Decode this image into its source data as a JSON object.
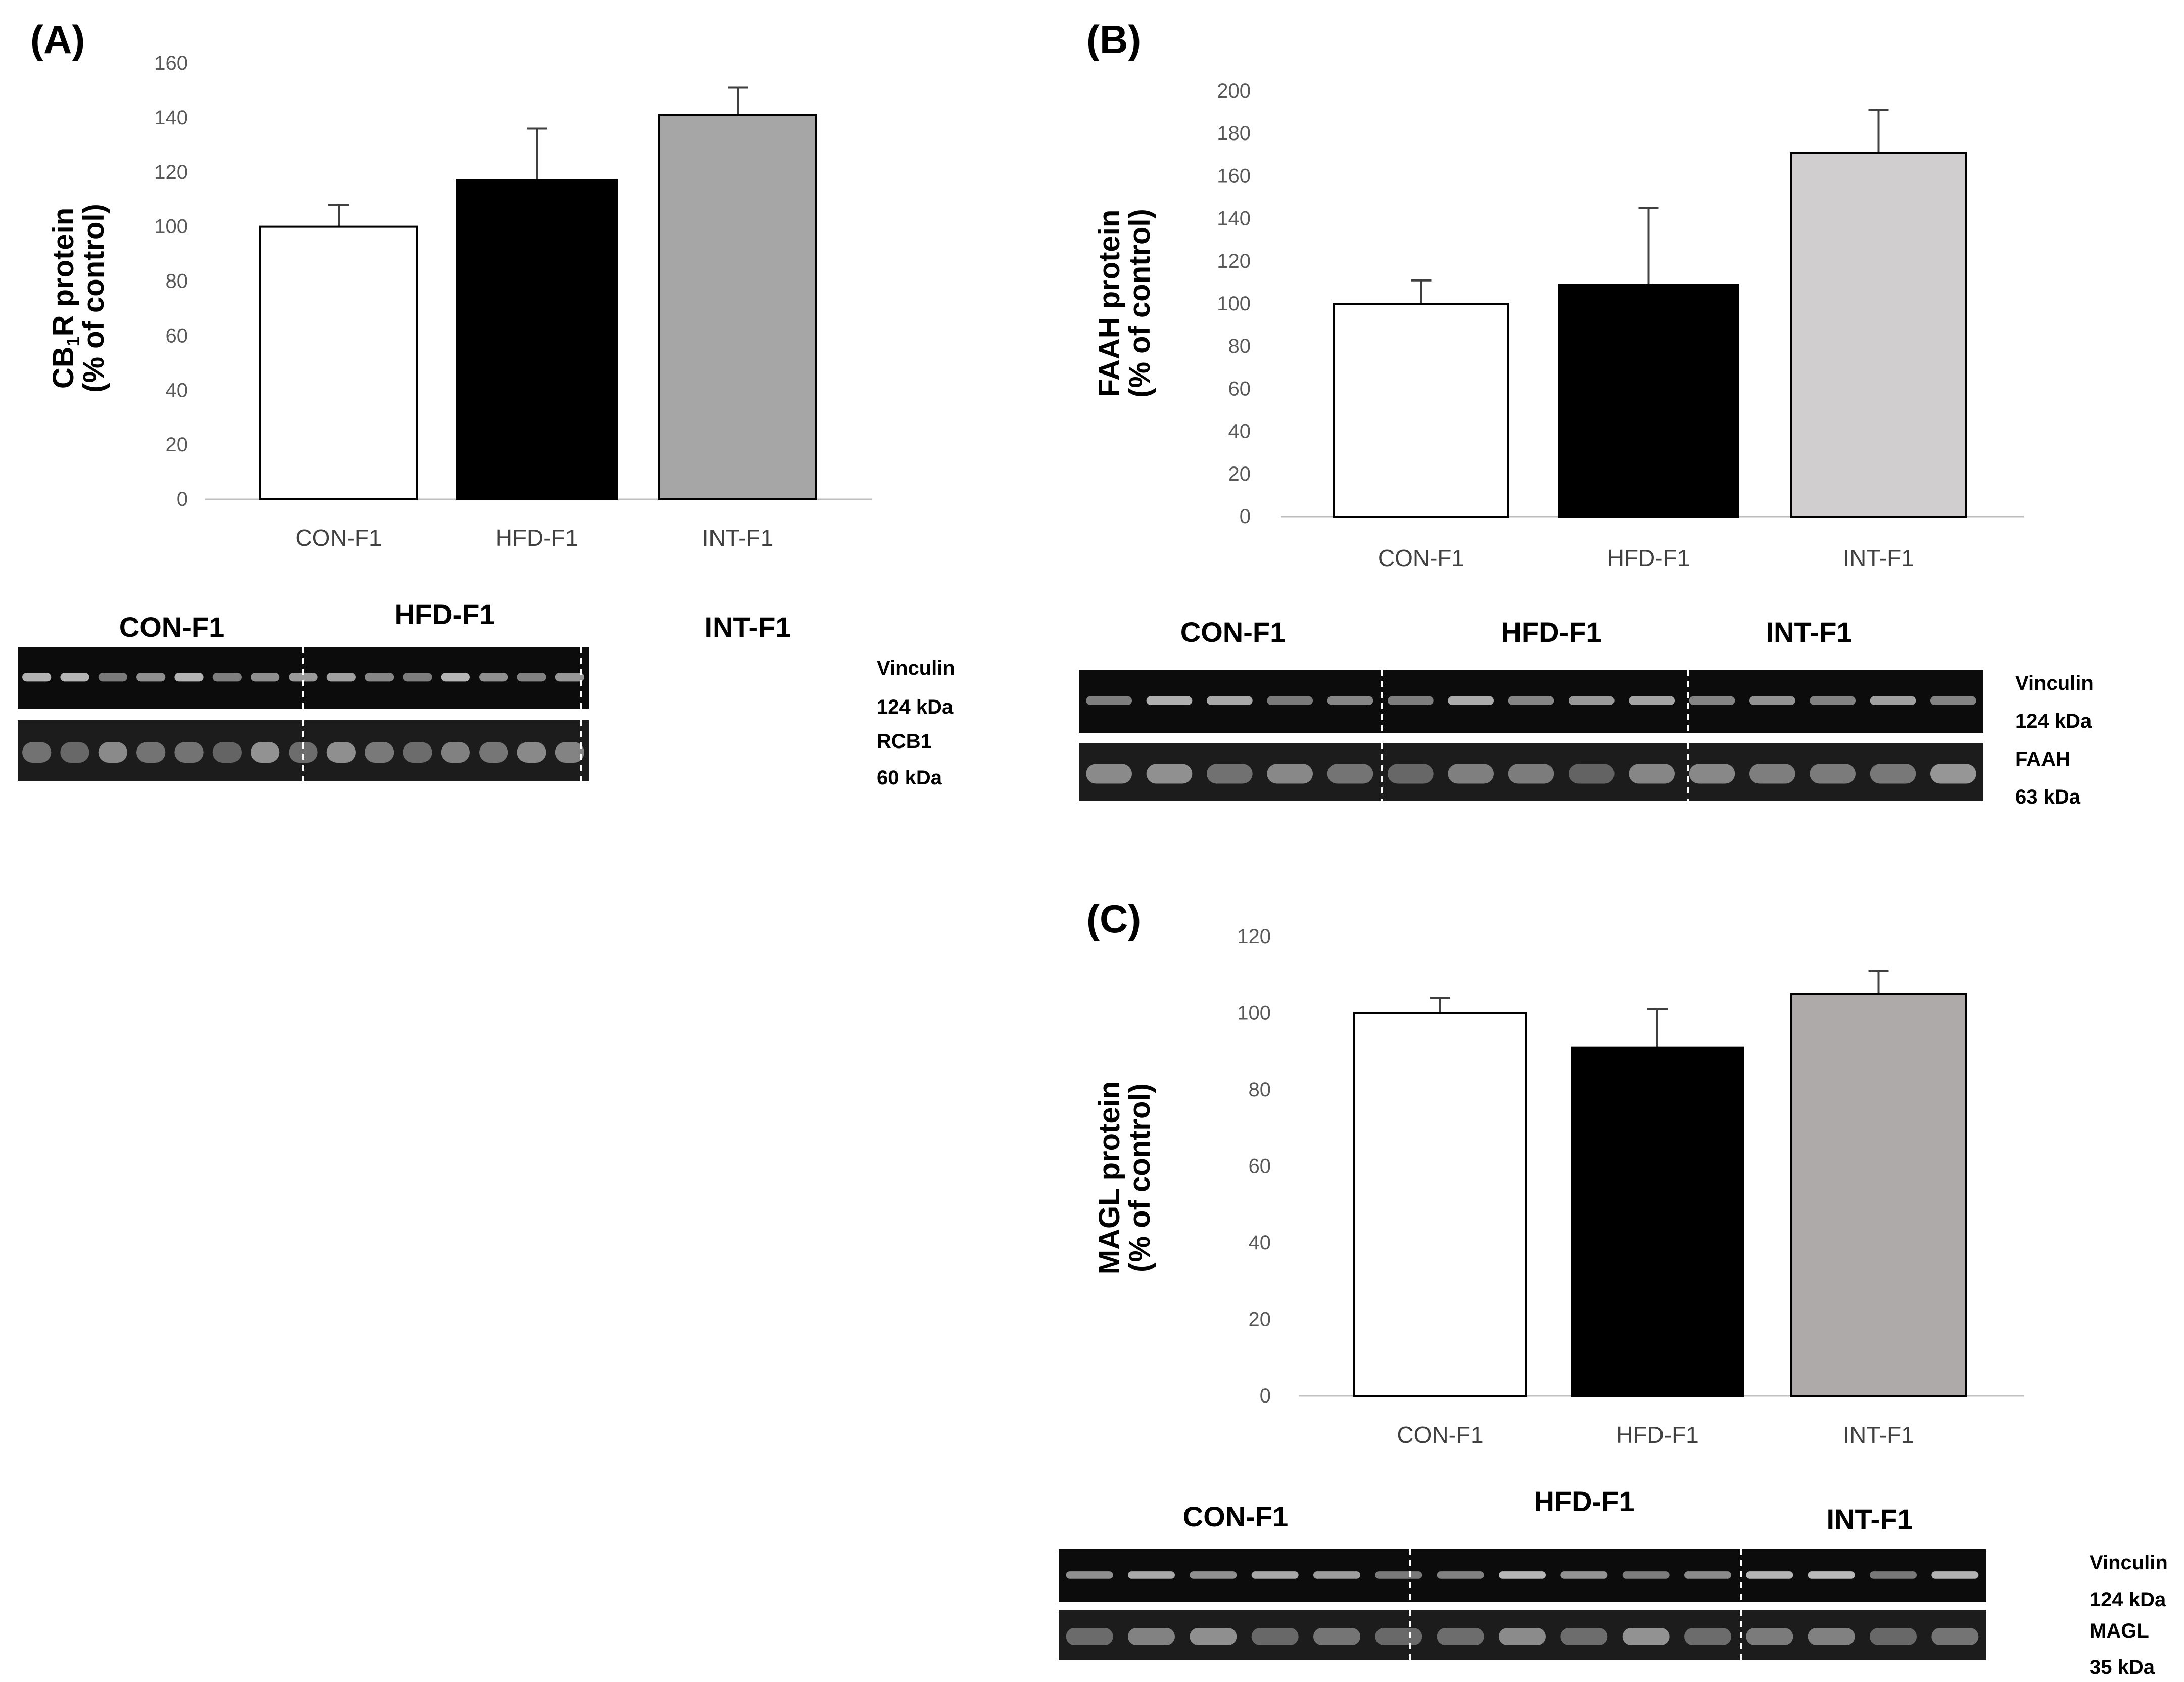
{
  "chart_data": [
    {
      "id": "A",
      "type": "bar",
      "panel_label": "(A)",
      "title": "",
      "ylabel_main": "CB",
      "ylabel_sub": "1",
      "ylabel_rest": "R protein",
      "ylabel_line2": "(% of control)",
      "xlabel": "",
      "categories": [
        "CON-F1",
        "HFD-F1",
        "INT-F1"
      ],
      "values": [
        100,
        117,
        141
      ],
      "errors": [
        8,
        19,
        10
      ],
      "colors": [
        "#ffffff",
        "#000000",
        "#a6a6a6"
      ],
      "ylim": [
        0,
        160
      ],
      "yticks": [
        0,
        20,
        40,
        60,
        80,
        100,
        120,
        140,
        160
      ],
      "blot": {
        "groups": [
          "CON-F1",
          "HFD-F1",
          "INT-F1"
        ],
        "rows": [
          {
            "protein": "Vinculin",
            "size": "124 kDa"
          },
          {
            "protein": "RCB1",
            "size": "60 kDa"
          }
        ]
      }
    },
    {
      "id": "B",
      "type": "bar",
      "panel_label": "(B)",
      "title": "",
      "ylabel_main": "FAAH protein",
      "ylabel_sub": "",
      "ylabel_rest": "",
      "ylabel_line2": "(% of control)",
      "xlabel": "",
      "categories": [
        "CON-F1",
        "HFD-F1",
        "INT-F1"
      ],
      "values": [
        100,
        109,
        171
      ],
      "errors": [
        11,
        36,
        20
      ],
      "colors": [
        "#ffffff",
        "#000000",
        "#d0cece"
      ],
      "ylim": [
        0,
        200
      ],
      "yticks": [
        0,
        20,
        40,
        60,
        80,
        100,
        120,
        140,
        160,
        180,
        200
      ],
      "blot": {
        "groups": [
          "CON-F1",
          "HFD-F1",
          "INT-F1"
        ],
        "rows": [
          {
            "protein": "Vinculin",
            "size": "124 kDa"
          },
          {
            "protein": "FAAH",
            "size": "63 kDa"
          }
        ]
      }
    },
    {
      "id": "C",
      "type": "bar",
      "panel_label": "(C)",
      "title": "",
      "ylabel_main": "MAGL protein",
      "ylabel_sub": "",
      "ylabel_rest": "",
      "ylabel_line2": "(% of control)",
      "xlabel": "",
      "categories": [
        "CON-F1",
        "HFD-F1",
        "INT-F1"
      ],
      "values": [
        100,
        91,
        105
      ],
      "errors": [
        4,
        10,
        6
      ],
      "colors": [
        "#ffffff",
        "#000000",
        "#aeaaaa"
      ],
      "ylim": [
        0,
        120
      ],
      "yticks": [
        0,
        20,
        40,
        60,
        80,
        100,
        120
      ],
      "blot": {
        "groups": [
          "CON-F1",
          "HFD-F1",
          "INT-F1"
        ],
        "rows": [
          {
            "protein": "Vinculin",
            "size": "124 kDa"
          },
          {
            "protein": "MAGL",
            "size": "35 kDa"
          }
        ]
      }
    }
  ]
}
